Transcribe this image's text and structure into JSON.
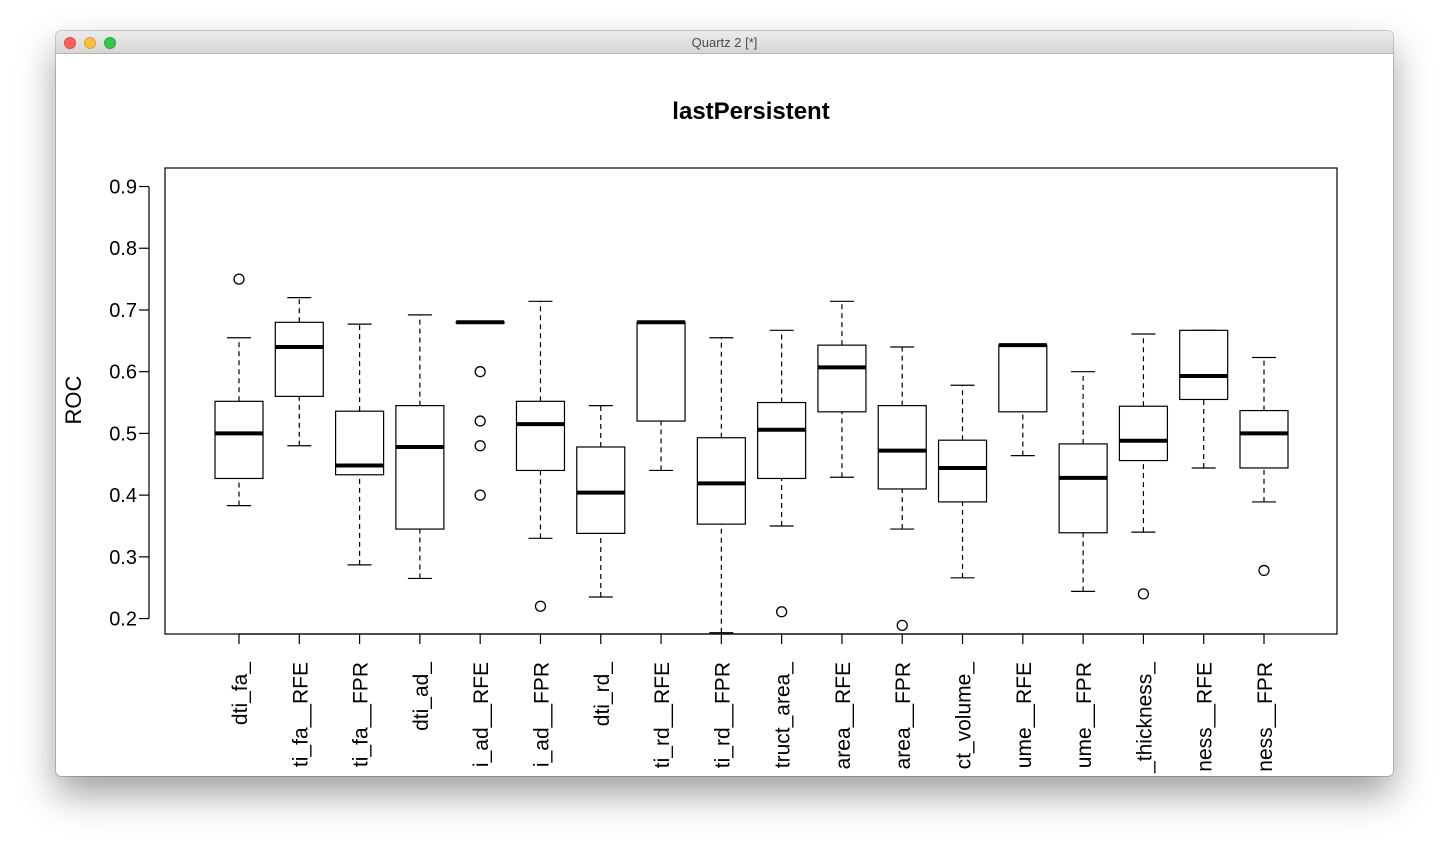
{
  "window": {
    "title": "Quartz 2 [*]"
  },
  "chart_data": {
    "type": "boxplot",
    "title": "lastPersistent",
    "ylabel": "ROC",
    "xlabel": "",
    "ylim": [
      0.175,
      0.93
    ],
    "yticks": [
      0.2,
      0.3,
      0.4,
      0.5,
      0.6,
      0.7,
      0.8,
      0.9
    ],
    "ytick_labels": [
      "0.2",
      "0.3",
      "0.4",
      "0.5",
      "0.6",
      "0.7",
      "0.8",
      "0.9"
    ],
    "categories": [
      "dti_fa_",
      "ti_fa__RFE",
      "ti_fa__FPR",
      "dti_ad_",
      "i_ad__RFE",
      "i_ad__FPR",
      "dti_rd_",
      "ti_rd__RFE",
      "ti_rd__FPR",
      "truct_area_",
      "area__RFE",
      "area__FPR",
      "ct_volume_",
      "ume__RFE",
      "ume__FPR",
      "_thickness_",
      "ness__RFE",
      "ness__FPR"
    ],
    "boxes": [
      {
        "whislo": 0.383,
        "q1": 0.427,
        "med": 0.5,
        "q3": 0.552,
        "whishi": 0.655,
        "fliers": [
          0.75
        ]
      },
      {
        "whislo": 0.48,
        "q1": 0.56,
        "med": 0.64,
        "q3": 0.68,
        "whishi": 0.72,
        "fliers": []
      },
      {
        "whislo": 0.287,
        "q1": 0.433,
        "med": 0.448,
        "q3": 0.536,
        "whishi": 0.677,
        "fliers": []
      },
      {
        "whislo": 0.265,
        "q1": 0.345,
        "med": 0.478,
        "q3": 0.545,
        "whishi": 0.692,
        "fliers": []
      },
      {
        "whislo": 0.68,
        "q1": 0.68,
        "med": 0.68,
        "q3": 0.68,
        "whishi": 0.68,
        "fliers": [
          0.6,
          0.52,
          0.48,
          0.4
        ]
      },
      {
        "whislo": 0.33,
        "q1": 0.44,
        "med": 0.515,
        "q3": 0.552,
        "whishi": 0.714,
        "fliers": [
          0.22
        ]
      },
      {
        "whislo": 0.235,
        "q1": 0.338,
        "med": 0.404,
        "q3": 0.478,
        "whishi": 0.545,
        "fliers": []
      },
      {
        "whislo": 0.44,
        "q1": 0.52,
        "med": 0.68,
        "q3": 0.68,
        "whishi": 0.68,
        "fliers": []
      },
      {
        "whislo": 0.177,
        "q1": 0.353,
        "med": 0.419,
        "q3": 0.493,
        "whishi": 0.655,
        "fliers": []
      },
      {
        "whislo": 0.35,
        "q1": 0.427,
        "med": 0.506,
        "q3": 0.55,
        "whishi": 0.667,
        "fliers": [
          0.211
        ]
      },
      {
        "whislo": 0.429,
        "q1": 0.535,
        "med": 0.607,
        "q3": 0.643,
        "whishi": 0.714,
        "fliers": []
      },
      {
        "whislo": 0.345,
        "q1": 0.41,
        "med": 0.472,
        "q3": 0.545,
        "whishi": 0.64,
        "fliers": [
          0.189
        ]
      },
      {
        "whislo": 0.266,
        "q1": 0.389,
        "med": 0.444,
        "q3": 0.489,
        "whishi": 0.578,
        "fliers": []
      },
      {
        "whislo": 0.464,
        "q1": 0.535,
        "med": 0.643,
        "q3": 0.643,
        "whishi": 0.643,
        "fliers": []
      },
      {
        "whislo": 0.244,
        "q1": 0.339,
        "med": 0.428,
        "q3": 0.483,
        "whishi": 0.6,
        "fliers": []
      },
      {
        "whislo": 0.34,
        "q1": 0.456,
        "med": 0.488,
        "q3": 0.544,
        "whishi": 0.661,
        "fliers": [
          0.24
        ]
      },
      {
        "whislo": 0.444,
        "q1": 0.555,
        "med": 0.593,
        "q3": 0.667,
        "whishi": 0.667,
        "fliers": []
      },
      {
        "whislo": 0.389,
        "q1": 0.444,
        "med": 0.5,
        "q3": 0.537,
        "whishi": 0.623,
        "fliers": [
          0.278
        ]
      }
    ]
  }
}
